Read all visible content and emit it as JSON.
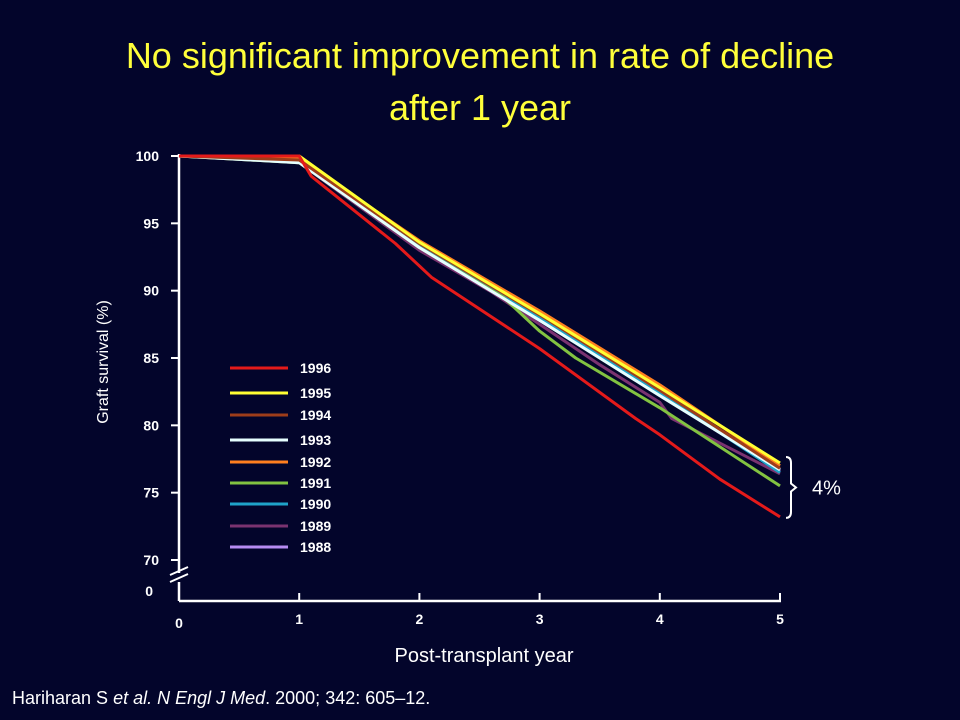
{
  "title": {
    "line1": "No significant improvement in rate of decline",
    "line2": "after 1 year"
  },
  "citation": {
    "authors": "Hariharan S ",
    "etal": "et al. N Engl J Med",
    "details": ". 2000; 342: 605–12."
  },
  "chart_data": {
    "type": "line",
    "xlabel": "Post-transplant year",
    "ylabel": "Graft survival (%)",
    "xlim": [
      0,
      5
    ],
    "ylim": [
      70,
      100
    ],
    "x_ticks": [
      0,
      1,
      2,
      3,
      4,
      5
    ],
    "x_tick_labels": [
      "0",
      "1",
      "2",
      "3",
      "4",
      "5"
    ],
    "y_ticks": [
      70,
      75,
      80,
      85,
      90,
      95,
      100
    ],
    "y_tick_labels": [
      "70",
      "75",
      "80",
      "85",
      "90",
      "95",
      "100"
    ],
    "y_axis_break_label": "0",
    "grid": false,
    "legend_position": "inside-left",
    "series": [
      {
        "name": "1996",
        "color": "#e41a1a",
        "points": [
          [
            0,
            100
          ],
          [
            1,
            100
          ],
          [
            1.1,
            98.5
          ],
          [
            1.8,
            93.5
          ],
          [
            2.1,
            91
          ],
          [
            3,
            85.7
          ],
          [
            3.8,
            80.5
          ],
          [
            4,
            79.3
          ],
          [
            4.5,
            76
          ],
          [
            5,
            73.2
          ]
        ]
      },
      {
        "name": "1995",
        "color": "#ffff33",
        "points": [
          [
            0,
            100
          ],
          [
            1,
            100
          ],
          [
            2,
            93.6
          ],
          [
            3,
            88.3
          ],
          [
            4,
            82.8
          ],
          [
            5,
            77.2
          ]
        ]
      },
      {
        "name": "1994",
        "color": "#9e3d1a",
        "points": [
          [
            0,
            100
          ],
          [
            1,
            99.7
          ],
          [
            2,
            93.5
          ],
          [
            3,
            88.2
          ],
          [
            4,
            82.6
          ],
          [
            5,
            76.8
          ]
        ]
      },
      {
        "name": "1993",
        "color": "#e6ffff",
        "points": [
          [
            0,
            100
          ],
          [
            1,
            99.5
          ],
          [
            2,
            93.2
          ],
          [
            3,
            87.8
          ],
          [
            4,
            82.2
          ],
          [
            5,
            76.7
          ]
        ]
      },
      {
        "name": "1992",
        "color": "#ff7f1f",
        "points": [
          [
            0,
            100
          ],
          [
            1,
            99.8
          ],
          [
            2,
            93.7
          ],
          [
            3,
            88.5
          ],
          [
            4,
            83
          ],
          [
            5,
            77
          ]
        ]
      },
      {
        "name": "1991",
        "color": "#82c341",
        "points": [
          [
            0,
            100
          ],
          [
            1,
            99.5
          ],
          [
            2,
            93.2
          ],
          [
            2.7,
            89.5
          ],
          [
            3,
            87
          ],
          [
            3.3,
            85
          ],
          [
            4,
            81.3
          ],
          [
            5,
            75.5
          ]
        ]
      },
      {
        "name": "1990",
        "color": "#1fa3c9",
        "points": [
          [
            0,
            100
          ],
          [
            1,
            99.6
          ],
          [
            2,
            93.3
          ],
          [
            3,
            88
          ],
          [
            4,
            82.4
          ],
          [
            5,
            76.5
          ]
        ]
      },
      {
        "name": "1989",
        "color": "#7a3370",
        "points": [
          [
            0,
            100
          ],
          [
            1,
            99.5
          ],
          [
            2,
            93
          ],
          [
            2.6,
            89.9
          ],
          [
            3,
            87.5
          ],
          [
            3.5,
            84.5
          ],
          [
            4,
            81.7
          ],
          [
            4.1,
            80.5
          ],
          [
            5,
            76.4
          ]
        ]
      },
      {
        "name": "1988",
        "color": "#b68cf2",
        "points": [
          [
            0,
            100
          ],
          [
            1,
            99.6
          ],
          [
            2,
            93.2
          ],
          [
            3,
            87.8
          ],
          [
            4,
            82.3
          ],
          [
            5,
            76.6
          ]
        ]
      }
    ],
    "annotations": [
      {
        "text": "4%",
        "from": 73.2,
        "to": 77.2
      }
    ]
  }
}
